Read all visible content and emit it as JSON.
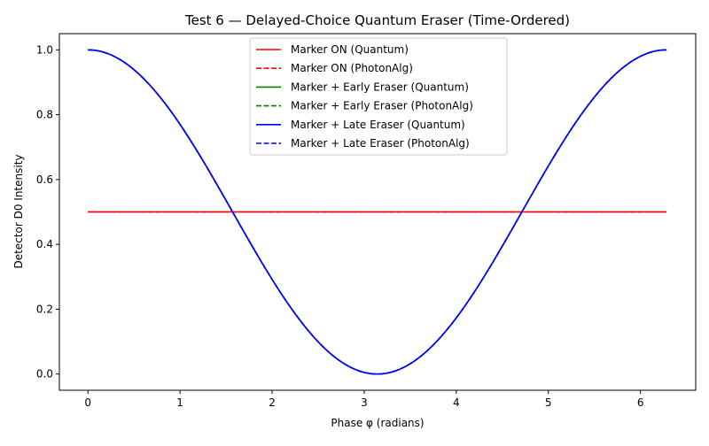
{
  "chart_data": {
    "type": "line",
    "title": "Test 6 — Delayed-Choice Quantum Eraser (Time-Ordered)",
    "xlabel": "Phase φ (radians)",
    "ylabel": "Detector D0 Intensity",
    "xlim": [
      -0.31,
      6.6
    ],
    "ylim": [
      -0.05,
      1.05
    ],
    "xticks": [
      0,
      1,
      2,
      3,
      4,
      5,
      6
    ],
    "yticks": [
      0.0,
      0.2,
      0.4,
      0.6,
      0.8,
      1.0
    ],
    "xtick_labels": [
      "0",
      "1",
      "2",
      "3",
      "4",
      "5",
      "6"
    ],
    "ytick_labels": [
      "0.0",
      "0.2",
      "0.4",
      "0.6",
      "0.8",
      "1.0"
    ],
    "grid": false,
    "legend_position": "top-center",
    "x": [
      0,
      0.2513,
      0.5027,
      0.754,
      1.0053,
      1.2566,
      1.508,
      1.7593,
      2.0106,
      2.262,
      2.5133,
      2.7646,
      3.0159,
      3.2673,
      3.5186,
      3.7699,
      4.0212,
      4.2726,
      4.5239,
      4.7752,
      5.0265,
      5.2779,
      5.5292,
      5.7805,
      6.0319,
      6.2832
    ],
    "series": [
      {
        "name": "Marker ON (Quantum)",
        "color": "#ff0000",
        "dash": "solid",
        "values": [
          0.5,
          0.5,
          0.5,
          0.5,
          0.5,
          0.5,
          0.5,
          0.5,
          0.5,
          0.5,
          0.5,
          0.5,
          0.5,
          0.5,
          0.5,
          0.5,
          0.5,
          0.5,
          0.5,
          0.5,
          0.5,
          0.5,
          0.5,
          0.5,
          0.5,
          0.5
        ]
      },
      {
        "name": "Marker ON (PhotonAlg)",
        "color": "#ff0000",
        "dash": "dashed",
        "values": [
          0.5,
          0.5,
          0.5,
          0.5,
          0.5,
          0.5,
          0.5,
          0.5,
          0.5,
          0.5,
          0.5,
          0.5,
          0.5,
          0.5,
          0.5,
          0.5,
          0.5,
          0.5,
          0.5,
          0.5,
          0.5,
          0.5,
          0.5,
          0.5,
          0.5,
          0.5
        ]
      },
      {
        "name": "Marker + Early Eraser (Quantum)",
        "color": "#008000",
        "dash": "solid",
        "values": [
          1.0,
          0.984,
          0.938,
          0.864,
          0.768,
          0.655,
          0.531,
          0.405,
          0.284,
          0.174,
          0.084,
          0.024,
          0.001,
          0.016,
          0.062,
          0.136,
          0.232,
          0.345,
          0.469,
          0.595,
          0.716,
          0.826,
          0.916,
          0.976,
          0.999,
          1.0
        ]
      },
      {
        "name": "Marker + Early Eraser (PhotonAlg)",
        "color": "#008000",
        "dash": "dashed",
        "values": [
          1.0,
          0.984,
          0.938,
          0.864,
          0.768,
          0.655,
          0.531,
          0.405,
          0.284,
          0.174,
          0.084,
          0.024,
          0.001,
          0.016,
          0.062,
          0.136,
          0.232,
          0.345,
          0.469,
          0.595,
          0.716,
          0.826,
          0.916,
          0.976,
          0.999,
          1.0
        ]
      },
      {
        "name": "Marker + Late Eraser (Quantum)",
        "color": "#0000ff",
        "dash": "solid",
        "values": [
          1.0,
          0.984,
          0.938,
          0.864,
          0.768,
          0.655,
          0.531,
          0.405,
          0.284,
          0.174,
          0.084,
          0.024,
          0.001,
          0.016,
          0.062,
          0.136,
          0.232,
          0.345,
          0.469,
          0.595,
          0.716,
          0.826,
          0.916,
          0.976,
          0.999,
          1.0
        ]
      },
      {
        "name": "Marker + Late Eraser (PhotonAlg)",
        "color": "#0000ff",
        "dash": "dashed",
        "values": [
          1.0,
          0.984,
          0.938,
          0.864,
          0.768,
          0.655,
          0.531,
          0.405,
          0.284,
          0.174,
          0.084,
          0.024,
          0.001,
          0.016,
          0.062,
          0.136,
          0.232,
          0.345,
          0.469,
          0.595,
          0.716,
          0.826,
          0.916,
          0.976,
          0.999,
          1.0
        ]
      }
    ]
  }
}
